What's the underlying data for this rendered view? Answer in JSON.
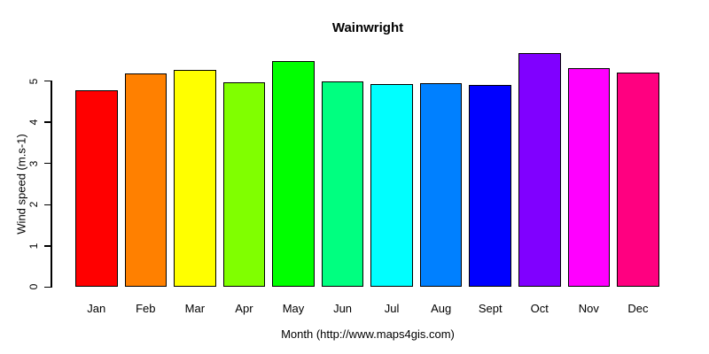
{
  "chart_data": {
    "type": "bar",
    "title": "Wainwright",
    "xlabel": "Month (http://www.maps4gis.com)",
    "ylabel": "Wind speed (m.s-1)",
    "categories": [
      "Jan",
      "Feb",
      "Mar",
      "Apr",
      "May",
      "Jun",
      "Jul",
      "Aug",
      "Sept",
      "Oct",
      "Nov",
      "Dec"
    ],
    "values": [
      4.77,
      5.19,
      5.28,
      4.98,
      5.49,
      4.99,
      4.93,
      4.96,
      4.9,
      5.69,
      5.31,
      5.21
    ],
    "bar_colors": [
      "#FF0000",
      "#FF8000",
      "#FFFF00",
      "#80FF00",
      "#00FF00",
      "#00FF80",
      "#00FFFF",
      "#0080FF",
      "#0000FF",
      "#8000FF",
      "#FF00FF",
      "#FF0080"
    ],
    "bar_border_color": "#000000",
    "yticks": [
      0,
      1,
      2,
      3,
      4,
      5
    ],
    "ylim": [
      0,
      5.8
    ],
    "grid": false,
    "legend": "none",
    "background_color": "#FFFFFF",
    "text_color": "#000000"
  }
}
